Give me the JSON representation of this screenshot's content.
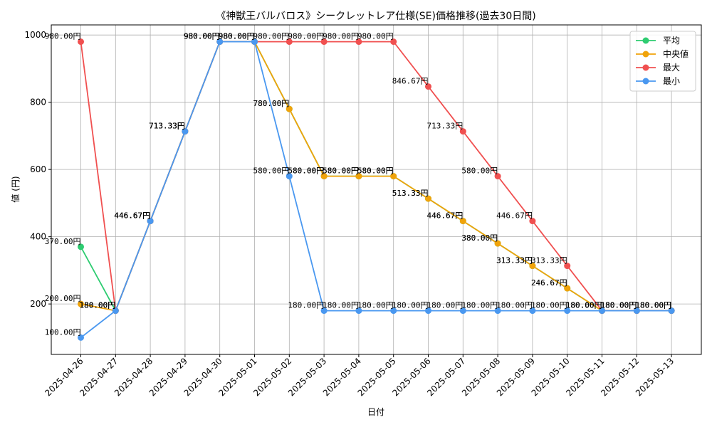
{
  "chart_data": {
    "type": "line",
    "title": "《神獣王バルバロス》シークレットレア仕様(SE)価格推移(過去30日間)",
    "xlabel": "日付",
    "ylabel": "値 (円)",
    "ylim": [
      50,
      1030
    ],
    "yticks": [
      200,
      400,
      600,
      800,
      1000
    ],
    "grid": true,
    "legend_position": "top-right",
    "label_suffix": "円",
    "categories": [
      "2025-04-26",
      "2025-04-27",
      "2025-04-28",
      "2025-04-29",
      "2025-04-30",
      "2025-05-01",
      "2025-05-02",
      "2025-05-03",
      "2025-05-04",
      "2025-05-05",
      "2025-05-06",
      "2025-05-07",
      "2025-05-08",
      "2025-05-09",
      "2025-05-10",
      "2025-05-11",
      "2025-05-12",
      "2025-05-13"
    ],
    "series": [
      {
        "name": "平均",
        "color": "#2ecc71",
        "values": [
          370.0,
          180.0,
          446.67,
          713.33,
          980.0,
          980.0,
          780.0,
          580.0,
          580.0,
          580.0,
          513.33,
          446.67,
          380.0,
          313.33,
          246.67,
          180.0,
          180.0,
          180.0
        ]
      },
      {
        "name": "中央値",
        "color": "#f0a30a",
        "values": [
          200.0,
          180.0,
          446.67,
          713.33,
          980.0,
          980.0,
          780.0,
          580.0,
          580.0,
          580.0,
          513.33,
          446.67,
          380.0,
          313.33,
          246.67,
          180.0,
          180.0,
          180.0
        ]
      },
      {
        "name": "最大",
        "color": "#f05050",
        "values": [
          980.0,
          180.0,
          446.67,
          713.33,
          980.0,
          980.0,
          980.0,
          980.0,
          980.0,
          980.0,
          846.67,
          713.33,
          580.0,
          446.67,
          313.33,
          180.0,
          180.0,
          180.0
        ]
      },
      {
        "name": "最小",
        "color": "#4a98f0",
        "values": [
          100.0,
          180.0,
          446.67,
          713.33,
          980.0,
          980.0,
          580.0,
          180.0,
          180.0,
          180.0,
          180.0,
          180.0,
          180.0,
          180.0,
          180.0,
          180.0,
          180.0,
          180.0
        ]
      }
    ]
  }
}
